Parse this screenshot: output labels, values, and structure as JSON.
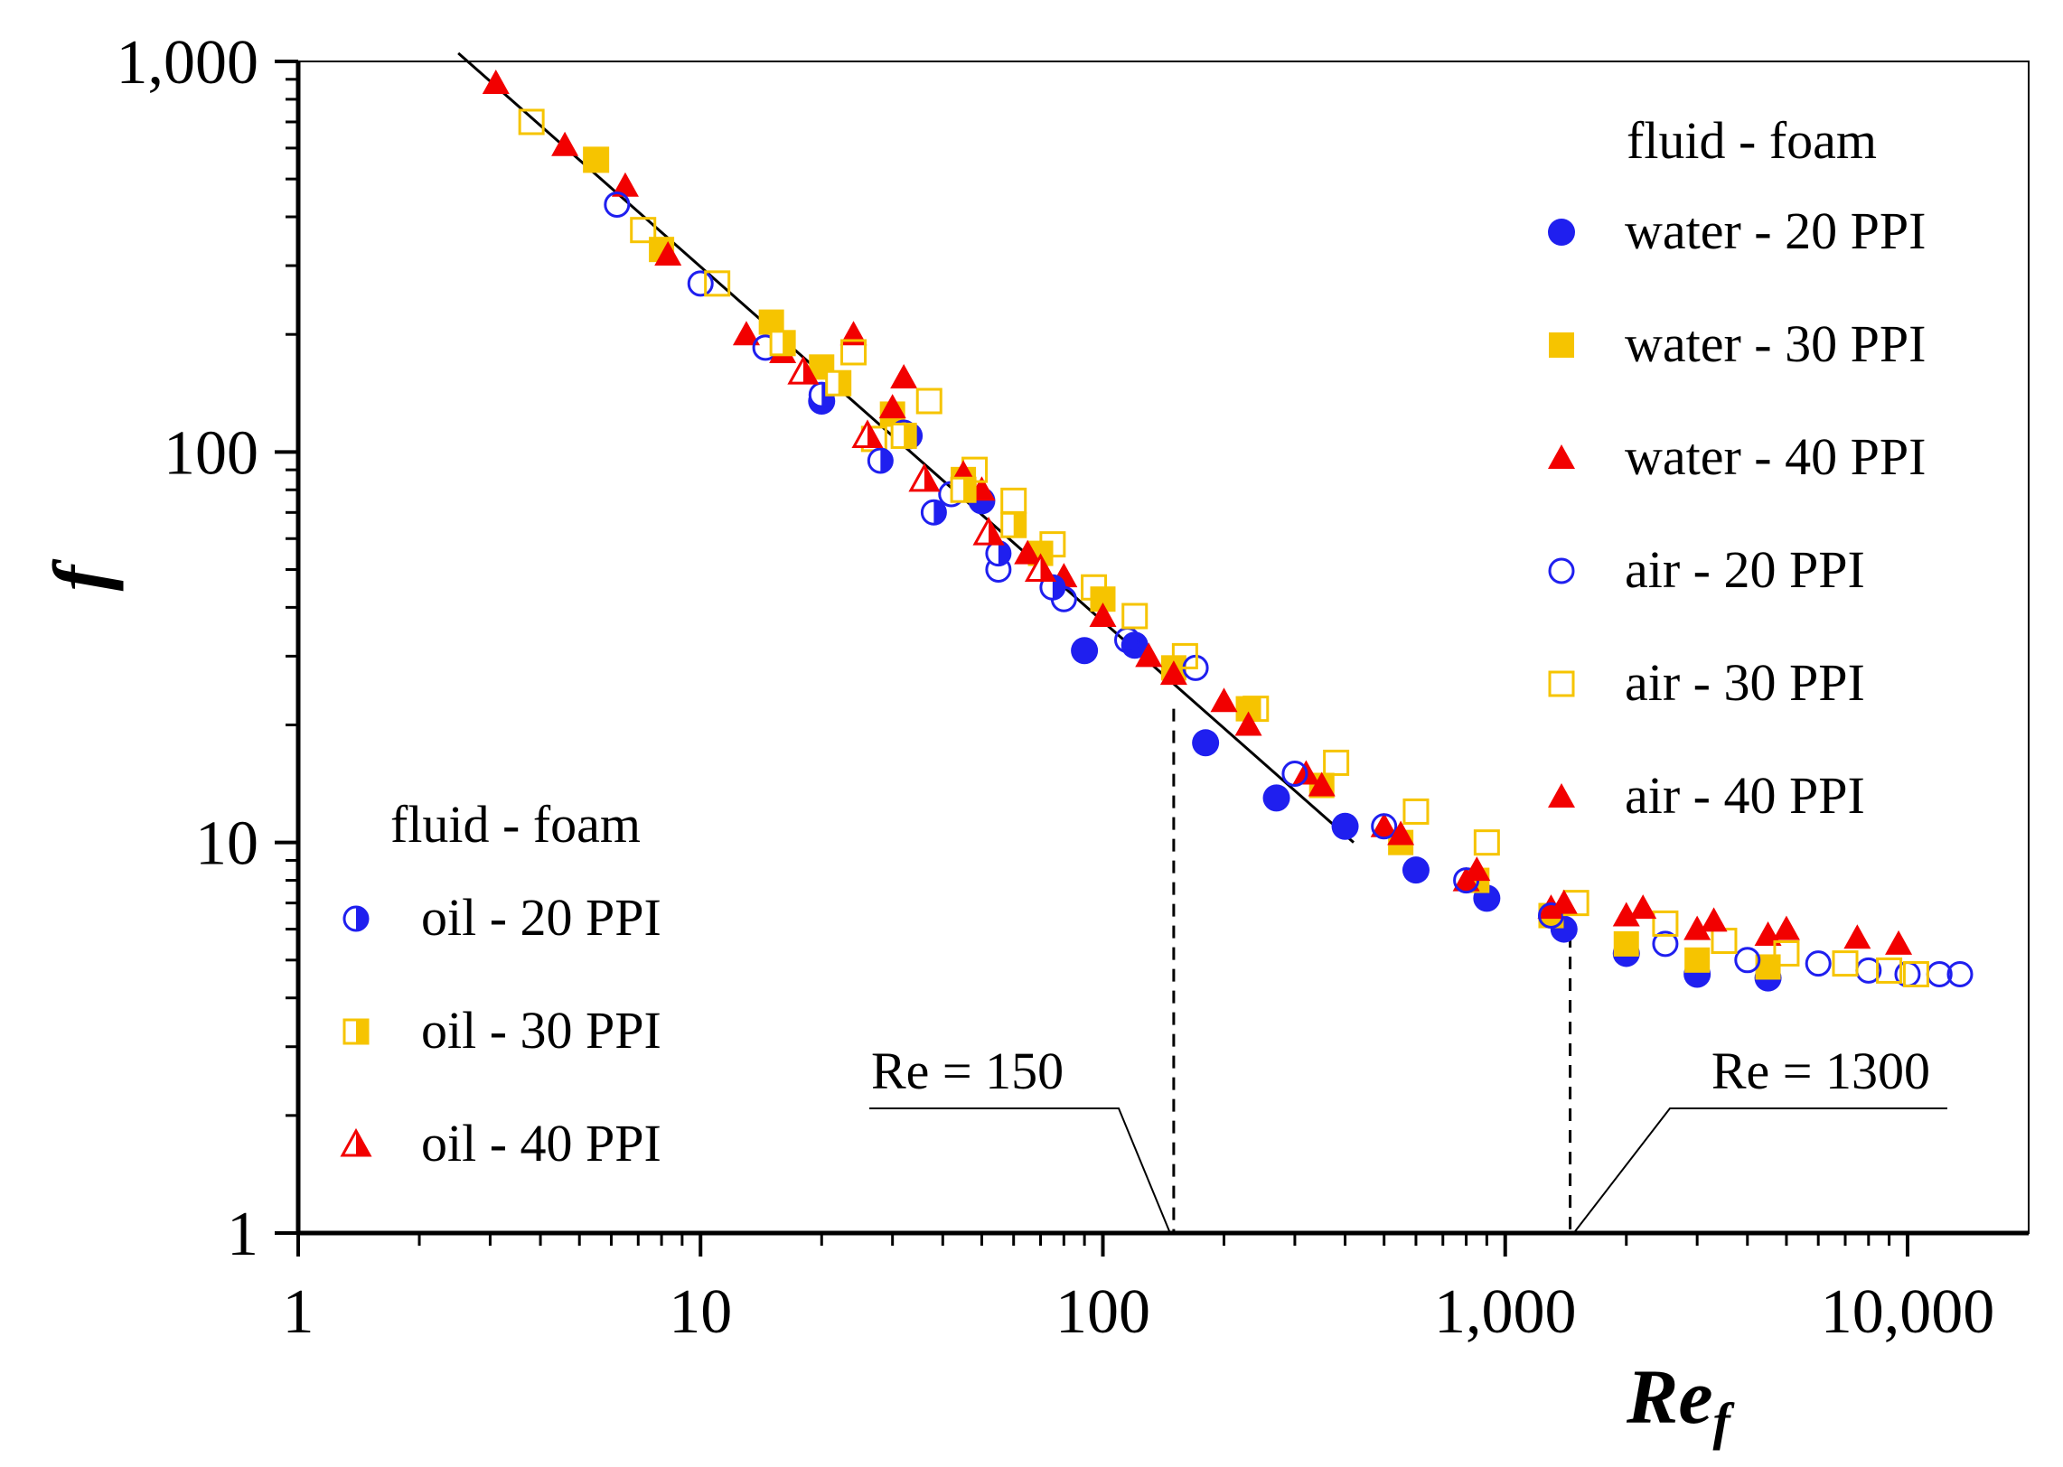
{
  "chart_data": {
    "type": "scatter",
    "xlabel_main": "Re",
    "xlabel_sub": "f",
    "ylabel": "f",
    "x_scale": "log",
    "y_scale": "log",
    "xlim": [
      1,
      20000
    ],
    "ylim": [
      1,
      1000
    ],
    "x_ticks": [
      1,
      10,
      100,
      1000,
      10000
    ],
    "x_tick_labels": [
      "1",
      "10",
      "100",
      "1,000",
      "10,000"
    ],
    "y_ticks": [
      1,
      10,
      100,
      1000
    ],
    "y_tick_labels": [
      "1",
      "10",
      "100",
      "1,000"
    ],
    "grid": false,
    "legend_top_title": "fluid - foam",
    "legend_bottom_title": "fluid - foam",
    "legend_top_placement": "top-right",
    "legend_bottom_placement": "bottom-left",
    "series": [
      {
        "name": "water - 20 PPI",
        "marker": "circle-filled",
        "color": "#1f1fef",
        "points": [
          [
            20,
            135
          ],
          [
            33,
            110
          ],
          [
            50,
            75
          ],
          [
            90,
            31
          ],
          [
            120,
            32
          ],
          [
            180,
            18
          ],
          [
            270,
            13
          ],
          [
            400,
            11
          ],
          [
            600,
            8.5
          ],
          [
            900,
            7.2
          ],
          [
            1400,
            6
          ],
          [
            2000,
            5.2
          ],
          [
            3000,
            4.6
          ],
          [
            4500,
            4.5
          ]
        ]
      },
      {
        "name": "water - 30 PPI",
        "marker": "square-filled",
        "color": "#f6c400",
        "points": [
          [
            5.5,
            560
          ],
          [
            8,
            330
          ],
          [
            15,
            215
          ],
          [
            20,
            165
          ],
          [
            30,
            125
          ],
          [
            45,
            85
          ],
          [
            70,
            55
          ],
          [
            100,
            42
          ],
          [
            150,
            28
          ],
          [
            230,
            22
          ],
          [
            350,
            14
          ],
          [
            550,
            10
          ],
          [
            850,
            8
          ],
          [
            1300,
            6.5
          ],
          [
            2000,
            5.5
          ],
          [
            3000,
            5
          ],
          [
            4500,
            4.8
          ]
        ]
      },
      {
        "name": "water - 40 PPI",
        "marker": "triangle-filled",
        "color": "#f20000",
        "points": [
          [
            3.1,
            880
          ],
          [
            6.5,
            480
          ],
          [
            13,
            200
          ],
          [
            24,
            200
          ],
          [
            32,
            155
          ],
          [
            50,
            80
          ],
          [
            80,
            48
          ],
          [
            130,
            30
          ],
          [
            200,
            23
          ],
          [
            320,
            15
          ],
          [
            500,
            11
          ],
          [
            800,
            8
          ],
          [
            1300,
            6.8
          ],
          [
            2000,
            6.5
          ],
          [
            3000,
            6
          ],
          [
            4500,
            5.8
          ]
        ]
      },
      {
        "name": "air - 20 PPI",
        "marker": "circle-open",
        "color": "#1f1fef",
        "points": [
          [
            6.2,
            430
          ],
          [
            10,
            270
          ],
          [
            14.5,
            185
          ],
          [
            32,
            112
          ],
          [
            42,
            78
          ],
          [
            55,
            50
          ],
          [
            80,
            42
          ],
          [
            115,
            33
          ],
          [
            170,
            28
          ],
          [
            300,
            15
          ],
          [
            500,
            11
          ],
          [
            800,
            8
          ],
          [
            1300,
            6.5
          ],
          [
            2500,
            5.5
          ],
          [
            4000,
            5
          ],
          [
            6000,
            4.9
          ],
          [
            8000,
            4.7
          ],
          [
            10000,
            4.6
          ],
          [
            12000,
            4.6
          ],
          [
            13500,
            4.6
          ]
        ]
      },
      {
        "name": "air - 30 PPI",
        "marker": "square-open",
        "color": "#f6c400",
        "points": [
          [
            3.8,
            700
          ],
          [
            5.5,
            560
          ],
          [
            7.2,
            370
          ],
          [
            11,
            270
          ],
          [
            24,
            180
          ],
          [
            27,
            108
          ],
          [
            37,
            135
          ],
          [
            48,
            90
          ],
          [
            60,
            75
          ],
          [
            75,
            58
          ],
          [
            95,
            45
          ],
          [
            120,
            38
          ],
          [
            160,
            30
          ],
          [
            240,
            22
          ],
          [
            380,
            16
          ],
          [
            600,
            12
          ],
          [
            900,
            10
          ],
          [
            1500,
            7
          ],
          [
            2500,
            6.2
          ],
          [
            3500,
            5.6
          ],
          [
            5000,
            5.2
          ],
          [
            7000,
            4.9
          ],
          [
            9000,
            4.7
          ],
          [
            10500,
            4.6
          ]
        ]
      },
      {
        "name": "air - 40 PPI",
        "marker": "triangle-filled",
        "color": "#f20000",
        "points": [
          [
            4.6,
            610
          ],
          [
            8.3,
            320
          ],
          [
            16,
            180
          ],
          [
            30,
            130
          ],
          [
            45,
            88
          ],
          [
            65,
            55
          ],
          [
            100,
            38
          ],
          [
            150,
            27
          ],
          [
            230,
            20
          ],
          [
            350,
            14
          ],
          [
            550,
            10.5
          ],
          [
            850,
            8.5
          ],
          [
            1400,
            7
          ],
          [
            2200,
            6.8
          ],
          [
            3300,
            6.3
          ],
          [
            5000,
            6
          ],
          [
            7500,
            5.7
          ],
          [
            9500,
            5.5
          ]
        ]
      },
      {
        "name": "oil - 20 PPI",
        "marker": "circle-half",
        "color": "#1f1fef",
        "points": [
          [
            20,
            140
          ],
          [
            28,
            95
          ],
          [
            38,
            70
          ],
          [
            55,
            55
          ],
          [
            75,
            45
          ]
        ]
      },
      {
        "name": "oil - 30 PPI",
        "marker": "square-half",
        "color": "#f6c400",
        "points": [
          [
            16,
            190
          ],
          [
            22,
            150
          ],
          [
            32,
            110
          ],
          [
            45,
            80
          ],
          [
            60,
            65
          ]
        ]
      },
      {
        "name": "oil - 40 PPI",
        "marker": "triangle-half",
        "color": "#f20000",
        "points": [
          [
            18,
            160
          ],
          [
            26,
            110
          ],
          [
            36,
            85
          ],
          [
            52,
            62
          ],
          [
            70,
            50
          ]
        ]
      }
    ],
    "fit_line": {
      "x": [
        2.5,
        420
      ],
      "y": [
        1050,
        10
      ]
    },
    "annotations": [
      {
        "text": "Re = 150",
        "x": 150
      },
      {
        "text": "Re = 1300",
        "x": 1450
      }
    ]
  }
}
